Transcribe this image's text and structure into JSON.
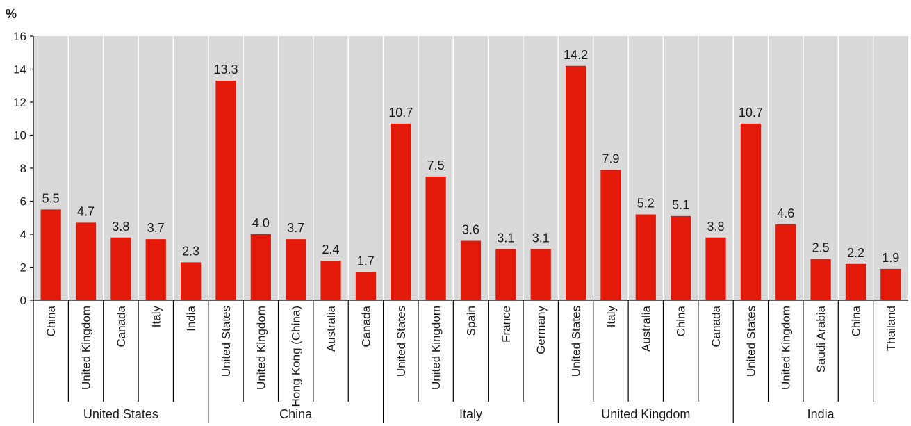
{
  "chart_data": {
    "type": "bar",
    "unit_label": "%",
    "ylim": [
      0,
      16
    ],
    "yticks": [
      0,
      2,
      4,
      6,
      8,
      10,
      12,
      14,
      16
    ],
    "grid": "vertical separators between categories",
    "bar_color": "#e31a0a",
    "plot_background": "#d9d9d9",
    "groups": [
      {
        "name": "United States",
        "categories": [
          "China",
          "United Kingdom",
          "Canada",
          "Italy",
          "India"
        ],
        "values": [
          5.5,
          4.7,
          3.8,
          3.7,
          2.3
        ],
        "value_labels": [
          "5.5",
          "4.7",
          "3.8",
          "3.7",
          "2.3"
        ]
      },
      {
        "name": "China",
        "categories": [
          "United States",
          "United Kingdom",
          "Hong Kong (China)",
          "Australia",
          "Canada"
        ],
        "values": [
          13.3,
          4.0,
          3.7,
          2.4,
          1.7
        ],
        "value_labels": [
          "13.3",
          "4.0",
          "3.7",
          "2.4",
          "1.7"
        ]
      },
      {
        "name": "Italy",
        "categories": [
          "United States",
          "United Kingdom",
          "Spain",
          "France",
          "Germany"
        ],
        "values": [
          10.7,
          7.5,
          3.6,
          3.1,
          3.1
        ],
        "value_labels": [
          "10.7",
          "7.5",
          "3.6",
          "3.1",
          "3.1"
        ]
      },
      {
        "name": "United Kingdom",
        "categories": [
          "United States",
          "Italy",
          "Australia",
          "China",
          "Canada"
        ],
        "values": [
          14.2,
          7.9,
          5.2,
          5.1,
          3.8
        ],
        "value_labels": [
          "14.2",
          "7.9",
          "5.2",
          "5.1",
          "3.8"
        ]
      },
      {
        "name": "India",
        "categories": [
          "United States",
          "United Kingdom",
          "Saudi Arabia",
          "China",
          "Thailand"
        ],
        "values": [
          10.7,
          4.6,
          2.5,
          2.2,
          1.9
        ],
        "value_labels": [
          "10.7",
          "4.6",
          "2.5",
          "2.2",
          "1.9"
        ]
      }
    ]
  }
}
